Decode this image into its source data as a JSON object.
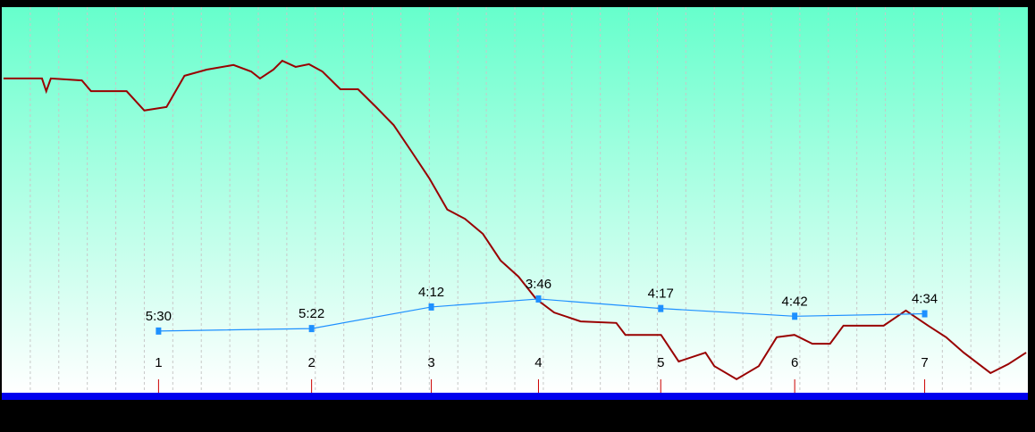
{
  "chart_data": {
    "type": "line",
    "xlim": [
      0,
      36
    ],
    "xticks": [
      1,
      2,
      3,
      4,
      5,
      6,
      7,
      8,
      9,
      10,
      11,
      12,
      13,
      14,
      15,
      16,
      17,
      18,
      19,
      20,
      21,
      22,
      23,
      24,
      25,
      26,
      27,
      28,
      29,
      30,
      31,
      32,
      33,
      34,
      35
    ],
    "grid": true,
    "series": [
      {
        "color": "#990000",
        "ylim": [
          0,
          100
        ],
        "x": [
          0.06,
          1.41,
          1.56,
          1.72,
          2.81,
          3.13,
          4.38,
          5,
          5.78,
          6.41,
          7.19,
          8.13,
          8.75,
          9.06,
          9.53,
          9.84,
          10.31,
          10.78,
          11.25,
          11.88,
          12.5,
          13.13,
          13.75,
          14.38,
          15,
          15.63,
          16.25,
          16.88,
          17.5,
          18.13,
          18.75,
          19.38,
          20.31,
          21.56,
          21.88,
          23.13,
          23.75,
          24.69,
          25,
          25.78,
          26.56,
          27.19,
          27.81,
          28.44,
          29.06,
          29.53,
          30.31,
          30.94,
          31.72,
          32.5,
          33.13,
          33.75,
          34.69,
          35.31,
          35.94
        ],
        "values": [
          81.5,
          81.5,
          78.2,
          81.5,
          81.0,
          78.2,
          78.2,
          73.2,
          74.1,
          82.2,
          83.8,
          85.0,
          83.3,
          81.5,
          83.8,
          86.1,
          84.5,
          85.2,
          83.3,
          78.7,
          78.7,
          74.1,
          69.4,
          62.5,
          55.6,
          47.5,
          45.1,
          41.2,
          34.3,
          30.1,
          24.3,
          20.8,
          18.5,
          18.1,
          15.0,
          15.0,
          8.1,
          10.4,
          6.9,
          3.5,
          6.9,
          14.4,
          15.0,
          12.7,
          12.7,
          17.4,
          17.4,
          17.4,
          21.3,
          17.4,
          14.4,
          10.4,
          5.1,
          7.4,
          10.4
        ]
      },
      {
        "color": "#1e90ff",
        "ylim": [
          530,
          -720
        ],
        "categories": [
          "1",
          "2",
          "3",
          "4",
          "5",
          "6",
          "7"
        ],
        "x": [
          5.5,
          10.87,
          15.07,
          18.83,
          23.12,
          27.82,
          32.38
        ],
        "values": [
          330,
          322,
          252,
          226,
          257,
          282,
          274
        ],
        "value_labels": [
          "5:30",
          "5:22",
          "4:12",
          "3:46",
          "4:17",
          "4:42",
          "4:34"
        ]
      }
    ]
  }
}
